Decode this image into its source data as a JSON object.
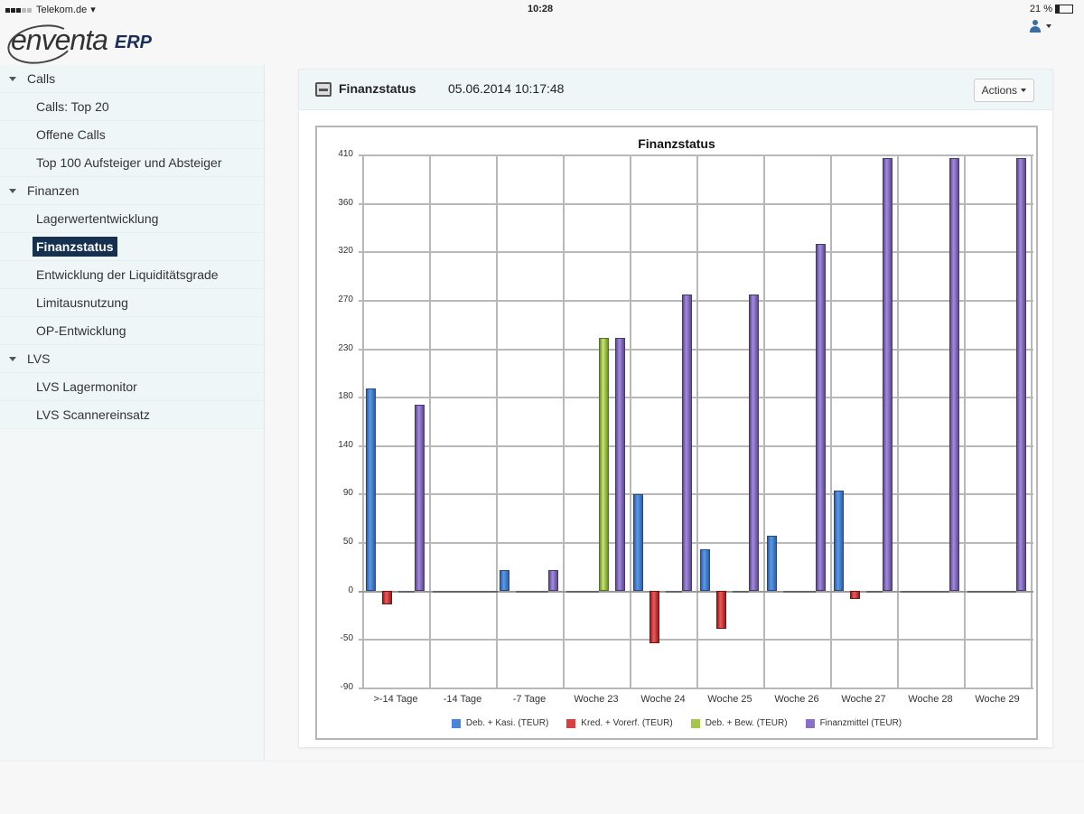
{
  "statusbar": {
    "carrier": "Telekom.de",
    "time": "10:28",
    "battery": "21 %"
  },
  "app": {
    "logo_text": "enventa",
    "logo_suffix": "ERP"
  },
  "sidebar": {
    "groups": [
      {
        "label": "Calls",
        "items": [
          {
            "label": "Calls: Top 20"
          },
          {
            "label": "Offene Calls"
          },
          {
            "label": "Top 100 Aufsteiger und Absteiger"
          }
        ]
      },
      {
        "label": "Finanzen",
        "items": [
          {
            "label": "Lagerwertentwicklung"
          },
          {
            "label": "Finanzstatus",
            "active": true
          },
          {
            "label": "Entwicklung der Liquiditätsgrade"
          },
          {
            "label": "Limitausnutzung"
          },
          {
            "label": "OP-Entwicklung"
          }
        ]
      },
      {
        "label": "LVS",
        "items": [
          {
            "label": "LVS Lagermonitor"
          },
          {
            "label": "LVS Scannereinsatz"
          }
        ]
      }
    ]
  },
  "panel": {
    "title": "Finanzstatus",
    "timestamp": "05.06.2014 10:17:48",
    "actions_label": "Actions"
  },
  "chart_data": {
    "type": "bar",
    "title": "Finanzstatus",
    "xlabel": "",
    "ylabel": "",
    "ylim": [
      -91,
      410
    ],
    "yticks": [
      410,
      360,
      320,
      270,
      230,
      180,
      140,
      90,
      50,
      0,
      -50,
      -90
    ],
    "grid": true,
    "legend_position": "bottom",
    "categories": [
      ">-14 Tage",
      "-14 Tage",
      "-7 Tage",
      "Woche 23",
      "Woche 24",
      "Woche 25",
      "Woche 26",
      "Woche 27",
      "Woche 28",
      "Woche 29"
    ],
    "series": [
      {
        "name": "Deb. + Kasi. (TEUR)",
        "color": "#4a86d8",
        "values": [
          190,
          0,
          19,
          0,
          91,
          39,
          52,
          94,
          0,
          0
        ]
      },
      {
        "name": "Kred. + Vorerf. (TEUR)",
        "color": "#d94040",
        "values": [
          -13,
          0,
          0,
          0,
          -49,
          -36,
          0,
          -8,
          0,
          0
        ]
      },
      {
        "name": "Deb. + Bew. (TEUR)",
        "color": "#a4c64a",
        "values": [
          0,
          0,
          0,
          238,
          0,
          0,
          0,
          0,
          0,
          0
        ]
      },
      {
        "name": "Finanzmittel (TEUR)",
        "color": "#8a70c8",
        "values": [
          175,
          0,
          19,
          238,
          278,
          278,
          326,
          407,
          407,
          407
        ]
      }
    ]
  }
}
